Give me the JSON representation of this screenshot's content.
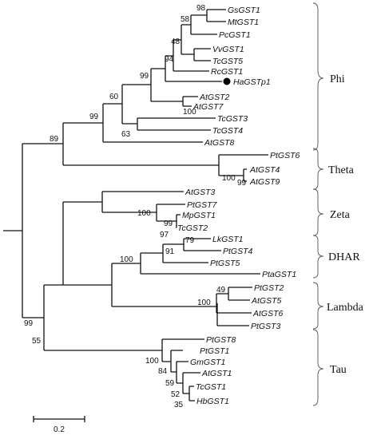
{
  "tree": {
    "leaves": [
      {
        "id": "GsGST1",
        "label": "GsGST1"
      },
      {
        "id": "MtGST1",
        "label": "MtGST1"
      },
      {
        "id": "PcGST1",
        "label": "PcGST1"
      },
      {
        "id": "VvGST1",
        "label": "VvGST1"
      },
      {
        "id": "TcGST5",
        "label": "TcGST5"
      },
      {
        "id": "RcGST1",
        "label": "RcGST1"
      },
      {
        "id": "HaGSTp1",
        "label": "HaGSTp1",
        "marked": true
      },
      {
        "id": "AtGST2",
        "label": "AtGST2"
      },
      {
        "id": "AtGST7",
        "label": "AtGST7"
      },
      {
        "id": "TcGST3",
        "label": "TcGST3"
      },
      {
        "id": "TcGST4",
        "label": "TcGST4"
      },
      {
        "id": "AtGST8",
        "label": "AtGST8"
      },
      {
        "id": "PtGST6",
        "label": "PtGST6"
      },
      {
        "id": "AtGST4",
        "label": "AtGST4"
      },
      {
        "id": "AtGST9",
        "label": "AtGST9"
      },
      {
        "id": "AtGST3",
        "label": "AtGST3"
      },
      {
        "id": "PtGST7",
        "label": "PtGST7"
      },
      {
        "id": "MpGST1",
        "label": "MpGST1"
      },
      {
        "id": "TcGST2",
        "label": "TcGST2"
      },
      {
        "id": "LkGST1",
        "label": "LkGST1"
      },
      {
        "id": "PtGST4",
        "label": "PtGST4"
      },
      {
        "id": "PtGST5",
        "label": "PtGST5"
      },
      {
        "id": "PtaGST1",
        "label": "PtaGST1"
      },
      {
        "id": "PtGST2",
        "label": "PtGST2"
      },
      {
        "id": "AtGST5",
        "label": "AtGST5"
      },
      {
        "id": "AtGST6",
        "label": "AtGST6"
      },
      {
        "id": "PtGST3",
        "label": "PtGST3"
      },
      {
        "id": "PtGST8",
        "label": "PtGST8"
      },
      {
        "id": "PtGST1",
        "label": "PtGST1"
      },
      {
        "id": "GmGST1",
        "label": "GmGST1"
      },
      {
        "id": "AtGST1",
        "label": "AtGST1"
      },
      {
        "id": "TcGST1",
        "label": "TcGST1"
      },
      {
        "id": "HbGST1",
        "label": "HbGST1"
      }
    ],
    "bootstrap": [
      "98",
      "58",
      "48",
      "94",
      "99",
      "60",
      "100",
      "63",
      "99",
      "89",
      "100",
      "99",
      "100",
      "99",
      "97",
      "79",
      "91",
      "100",
      "49",
      "100",
      "99",
      "55",
      "100",
      "84",
      "59",
      "52",
      "35"
    ],
    "groups": [
      {
        "id": "phi",
        "label": "Phi"
      },
      {
        "id": "theta",
        "label": "Theta"
      },
      {
        "id": "zeta",
        "label": "Zeta"
      },
      {
        "id": "dhar",
        "label": "DHAR"
      },
      {
        "id": "lambda",
        "label": "Lambda"
      },
      {
        "id": "tau",
        "label": "Tau"
      }
    ]
  },
  "scale_bar": {
    "label": "0.2"
  }
}
